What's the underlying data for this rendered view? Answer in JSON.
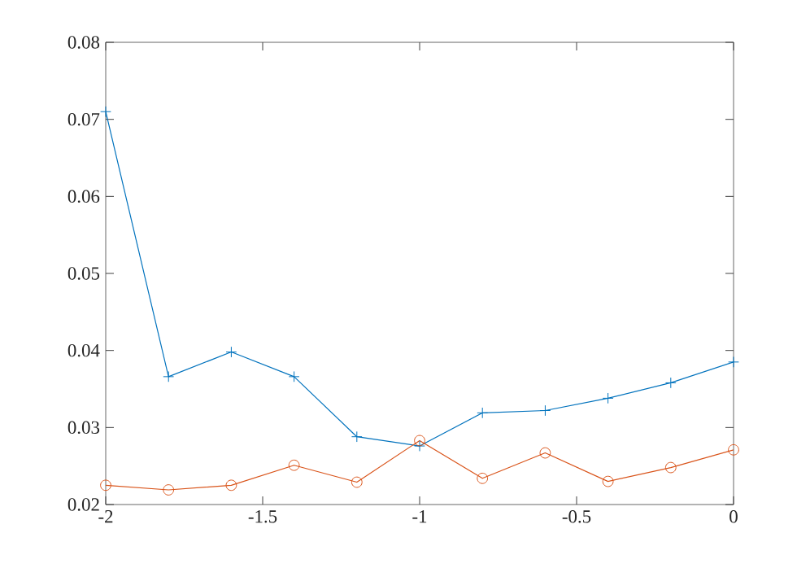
{
  "chart_data": {
    "type": "line",
    "x": [
      -2,
      -1.8,
      -1.6,
      -1.4,
      -1.2,
      -1,
      -0.8,
      -0.6,
      -0.4,
      -0.2,
      0
    ],
    "series": [
      {
        "color": "#0072bd",
        "marker": "cross",
        "values": [
          0.071,
          0.0366,
          0.0398,
          0.0366,
          0.0288,
          0.0276,
          0.0319,
          0.0322,
          0.0338,
          0.0358,
          0.0385
        ]
      },
      {
        "color": "#d95319",
        "marker": "circle",
        "values": [
          0.0225,
          0.0219,
          0.0225,
          0.0251,
          0.0229,
          0.0283,
          0.0234,
          0.0267,
          0.023,
          0.0248,
          0.0271
        ]
      }
    ],
    "xlim": [
      -2,
      0
    ],
    "xticks": [
      -2,
      -1.5,
      -1,
      -0.5,
      0
    ],
    "ylim": [
      0.02,
      0.08
    ],
    "yticks": [
      0.02,
      0.03,
      0.04,
      0.05,
      0.06,
      0.07,
      0.08
    ],
    "line_style": "solid"
  }
}
